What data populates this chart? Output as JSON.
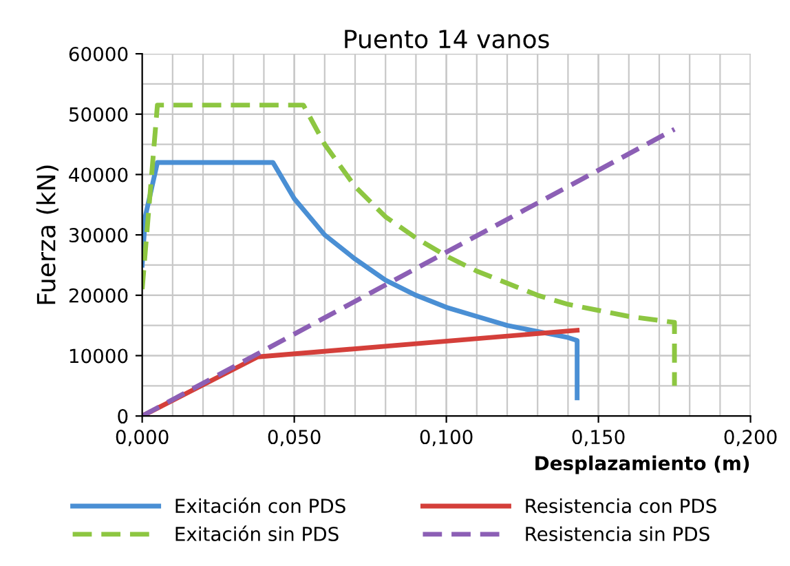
{
  "chart_data": {
    "type": "line",
    "title": "Puento 14 vanos",
    "xlabel": "Desplazamiento (m)",
    "ylabel": "Fuerza (kN)",
    "xlim": [
      0,
      0.2
    ],
    "ylim": [
      0,
      60000
    ],
    "xticks": [
      {
        "value": 0,
        "label": "0,000"
      },
      {
        "value": 0.05,
        "label": "0,050"
      },
      {
        "value": 0.1,
        "label": "0,100"
      },
      {
        "value": 0.15,
        "label": "0,150"
      },
      {
        "value": 0.2,
        "label": "0,200"
      }
    ],
    "yticks": [
      0,
      10000,
      20000,
      30000,
      40000,
      50000,
      60000
    ],
    "grid": true,
    "legend": "bottom",
    "marker": "none",
    "series": [
      {
        "name": "Exitación con PDS",
        "color": "#4a8fd4",
        "line_style": "solid",
        "x": [
          0,
          0.001,
          0.005,
          0.043,
          0.05,
          0.06,
          0.07,
          0.08,
          0.09,
          0.1,
          0.11,
          0.12,
          0.13,
          0.14,
          0.143,
          0.143
        ],
        "values": [
          25000,
          33000,
          42000,
          42000,
          36000,
          30000,
          26000,
          22500,
          20000,
          18000,
          16500,
          15000,
          14000,
          13000,
          12500,
          3000
        ]
      },
      {
        "name": "Exitación sin PDS",
        "color": "#8dc641",
        "line_style": "dashed",
        "x": [
          0,
          0.005,
          0.053,
          0.06,
          0.07,
          0.08,
          0.09,
          0.1,
          0.11,
          0.12,
          0.13,
          0.14,
          0.15,
          0.16,
          0.175,
          0.175
        ],
        "values": [
          21000,
          51500,
          51500,
          45000,
          38000,
          33000,
          29500,
          26500,
          24000,
          22000,
          20000,
          18500,
          17500,
          16500,
          15500,
          5000
        ]
      },
      {
        "name": "Resistencia con PDS",
        "color": "#d43f3a",
        "line_style": "solid",
        "x": [
          0,
          0.038,
          0.143
        ],
        "values": [
          0,
          9800,
          14200
        ]
      },
      {
        "name": "Resistencia sin PDS",
        "color": "#8c5fb5",
        "line_style": "dashed",
        "x": [
          0,
          0.175
        ],
        "values": [
          0,
          47500
        ]
      }
    ]
  }
}
